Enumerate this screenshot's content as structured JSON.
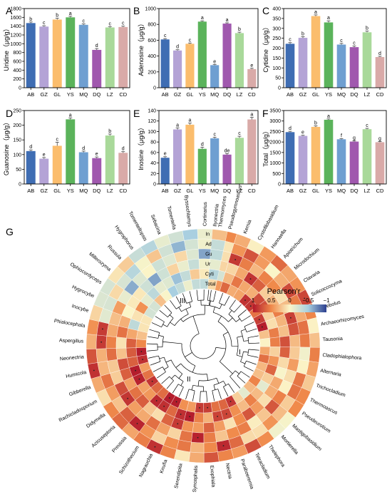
{
  "categories": [
    "AB",
    "GZ",
    "GL",
    "YS",
    "MQ",
    "DQ",
    "LZ",
    "CD"
  ],
  "bar_colors": [
    "#3f6db3",
    "#b4a3d6",
    "#fbbd6d",
    "#5bb35b",
    "#6f9fd1",
    "#a058ae",
    "#a9d99a",
    "#d9aaa8"
  ],
  "chart_data": [
    {
      "type": "bar",
      "panel": "A",
      "ylabel": "Uridine（μg/g）",
      "ylim": [
        0,
        1800
      ],
      "yticks": [
        0,
        200,
        400,
        600,
        800,
        1000,
        1200,
        1400,
        1600,
        1800
      ],
      "categories": [
        "AB",
        "GZ",
        "GL",
        "YS",
        "MQ",
        "DQ",
        "LZ",
        "CD"
      ],
      "values": [
        1470,
        1390,
        1550,
        1600,
        1430,
        860,
        1370,
        1380
      ],
      "errors": [
        25,
        20,
        30,
        25,
        20,
        30,
        20,
        20
      ],
      "letters": [
        "b",
        "c",
        "b",
        "a",
        "c",
        "d",
        "c",
        "c"
      ]
    },
    {
      "type": "bar",
      "panel": "B",
      "ylabel": "Adenosine（μg/g）",
      "ylim": [
        0,
        1000
      ],
      "yticks": [
        0,
        200,
        400,
        600,
        800,
        1000
      ],
      "categories": [
        "AB",
        "GZ",
        "GL",
        "YS",
        "MQ",
        "DQ",
        "LZ",
        "CD"
      ],
      "values": [
        610,
        470,
        555,
        835,
        285,
        810,
        690,
        235
      ],
      "errors": [
        10,
        10,
        10,
        10,
        10,
        10,
        12,
        10
      ],
      "letters": [
        "c",
        "d",
        "c",
        "a",
        "e",
        "a",
        "b",
        "e"
      ]
    },
    {
      "type": "bar",
      "panel": "C",
      "ylabel": "Cytidine（μg/g）",
      "ylim": [
        0,
        400
      ],
      "yticks": [
        0,
        50,
        100,
        150,
        200,
        250,
        300,
        350,
        400
      ],
      "categories": [
        "AB",
        "GZ",
        "GL",
        "YS",
        "MQ",
        "DQ",
        "LZ",
        "CD"
      ],
      "values": [
        222,
        252,
        362,
        330,
        218,
        205,
        280,
        155
      ],
      "errors": [
        6,
        6,
        6,
        8,
        6,
        6,
        6,
        4
      ],
      "letters": [
        "c",
        "b",
        "a",
        "a",
        "c",
        "c",
        "b",
        "d"
      ]
    },
    {
      "type": "bar",
      "panel": "D",
      "ylabel": "Guanosine（μg/g）",
      "ylim": [
        0,
        250
      ],
      "yticks": [
        0,
        50,
        100,
        150,
        200,
        250
      ],
      "categories": [
        "AB",
        "GZ",
        "GL",
        "YS",
        "MQ",
        "DQ",
        "LZ",
        "CD"
      ],
      "values": [
        112,
        86,
        130,
        220,
        108,
        88,
        165,
        106
      ],
      "errors": [
        4,
        4,
        12,
        5,
        4,
        4,
        5,
        4
      ],
      "letters": [
        "d",
        "e",
        "c",
        "a",
        "d",
        "e",
        "b",
        "d"
      ]
    },
    {
      "type": "bar",
      "panel": "E",
      "ylabel": "Inosine（μg/g）",
      "ylim": [
        0,
        140
      ],
      "yticks": [
        0,
        20,
        40,
        60,
        80,
        100,
        120,
        140
      ],
      "categories": [
        "AB",
        "GZ",
        "GL",
        "YS",
        "MQ",
        "DQ",
        "LZ",
        "CD"
      ],
      "values": [
        50,
        104,
        113,
        67,
        87,
        56,
        88,
        123
      ],
      "errors": [
        2,
        3,
        3,
        3,
        2,
        2,
        3,
        4
      ],
      "letters": [
        "e",
        "a",
        "a",
        "d",
        "c",
        "de",
        "c",
        "a"
      ]
    },
    {
      "type": "bar",
      "panel": "F",
      "ylabel": "Total（μg/g）",
      "ylim": [
        0,
        3500
      ],
      "yticks": [
        0,
        500,
        1000,
        1500,
        2000,
        2500,
        3000,
        3500
      ],
      "categories": [
        "AB",
        "GZ",
        "GL",
        "YS",
        "MQ",
        "DQ",
        "LZ",
        "CD"
      ],
      "values": [
        2470,
        2290,
        2720,
        3060,
        2130,
        2020,
        2610,
        1990
      ],
      "errors": [
        40,
        30,
        50,
        40,
        30,
        30,
        40,
        30
      ],
      "letters": [
        "d",
        "e",
        "b",
        "a",
        "f",
        "g",
        "c",
        "g"
      ]
    },
    {
      "type": "heatmap",
      "panel": "G",
      "rings": [
        "In",
        "Ad",
        "Gu",
        "Ur",
        "Cyti",
        "Total"
      ],
      "genera": [
        "Ilyonectria",
        "Pseudogymnoascus",
        "Kernia",
        "Cystofilobasidium",
        "Hannaella",
        "Apiotrichum",
        "Microdochium",
        "Clavaria",
        "Solicoccozyma",
        "Thelebolus",
        "Archaeorhizomyces",
        "Tausonia",
        "Cladophialophora",
        "Alternaria",
        "Trichocladium",
        "Thermoascus",
        "Pseudeurotium",
        "Mastigobasidium",
        "Mortierella",
        "Thelephora",
        "Tetracladium",
        "Paraboeremia",
        "Nectria",
        "Exophiala",
        "Syncephalis",
        "Serendipita",
        "Knufia",
        "Nagrauchia",
        "Schizothecium",
        "Preussia",
        "Acicuseptoria",
        "Didymella",
        "Rachicladosporium",
        "Gibberella",
        "Humicola",
        "Neonectria",
        "Aspergillus",
        "Phialocephala",
        "Inocybe",
        "Hygrocybe",
        "Ophiocordyceps",
        "Millerozyma",
        "Russula",
        "Hygrophorus",
        "Tomentellopsis",
        "Sebacina",
        "Tomentella",
        "Byssochlamys",
        "Cortinarius",
        "Thermomyces"
      ],
      "clusters": [
        "I",
        "II",
        "III"
      ],
      "legend": {
        "title": "Pearson'r",
        "ticks": [
          "1",
          "0.5",
          "0",
          "−0.5",
          "−1"
        ],
        "values": [
          1,
          0.5,
          0,
          -0.5,
          -1
        ]
      },
      "colors": {
        "pos": "#b2182b",
        "mid": "#fbf5c8",
        "neg": "#2c3f8f"
      }
    }
  ],
  "panel_titles": {
    "A": "A",
    "B": "B",
    "C": "C",
    "D": "D",
    "E": "E",
    "F": "F",
    "G": "G"
  }
}
